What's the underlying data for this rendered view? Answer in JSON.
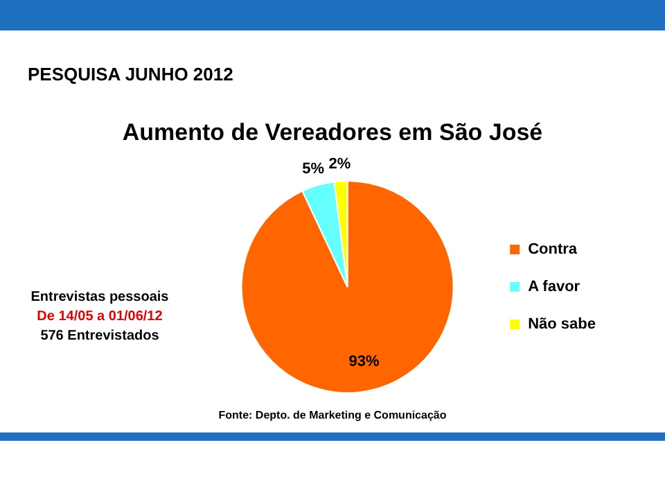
{
  "chart_data": {
    "type": "pie",
    "title": "Aumento de Vereadores em São José",
    "subtitle": "PESQUISA JUNHO 2012",
    "categories": [
      "Contra",
      "A favor",
      "Não sabe"
    ],
    "values": [
      93,
      5,
      2
    ],
    "colors": [
      "#ff6600",
      "#66ffff",
      "#ffff00"
    ],
    "value_labels": [
      "93%",
      "5%",
      "2%"
    ],
    "legend": "right",
    "annotations": [
      "Entrevistas pessoais",
      "De 14/05 a 01/06/12",
      "576 Entrevistados",
      "Fonte: Depto. de Marketing e Comunicação"
    ]
  }
}
